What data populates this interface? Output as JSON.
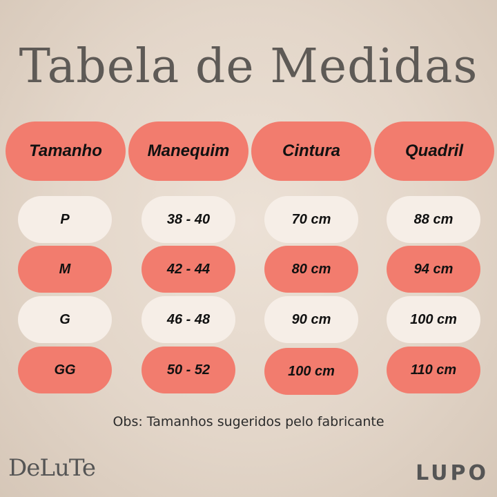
{
  "title": "Tabela de Medidas",
  "headers": [
    "Tamanho",
    "Manequim",
    "Cintura",
    "Quadril"
  ],
  "rows": [
    [
      "P",
      "38 - 40",
      "70 cm",
      "88 cm"
    ],
    [
      "M",
      "42 - 44",
      "80 cm",
      "94 cm"
    ],
    [
      "G",
      "46 - 48",
      "90 cm",
      "100 cm"
    ],
    [
      "GG",
      "50 - 52",
      "100 cm",
      "110 cm"
    ]
  ],
  "note": "Obs: Tamanhos sugeridos pelo fabricante",
  "brands": {
    "left": "DeLuTe",
    "right": "LUPO"
  },
  "colors": {
    "coral": "#f27c6e",
    "light": "#f6eee7",
    "title": "#5e5a56"
  }
}
